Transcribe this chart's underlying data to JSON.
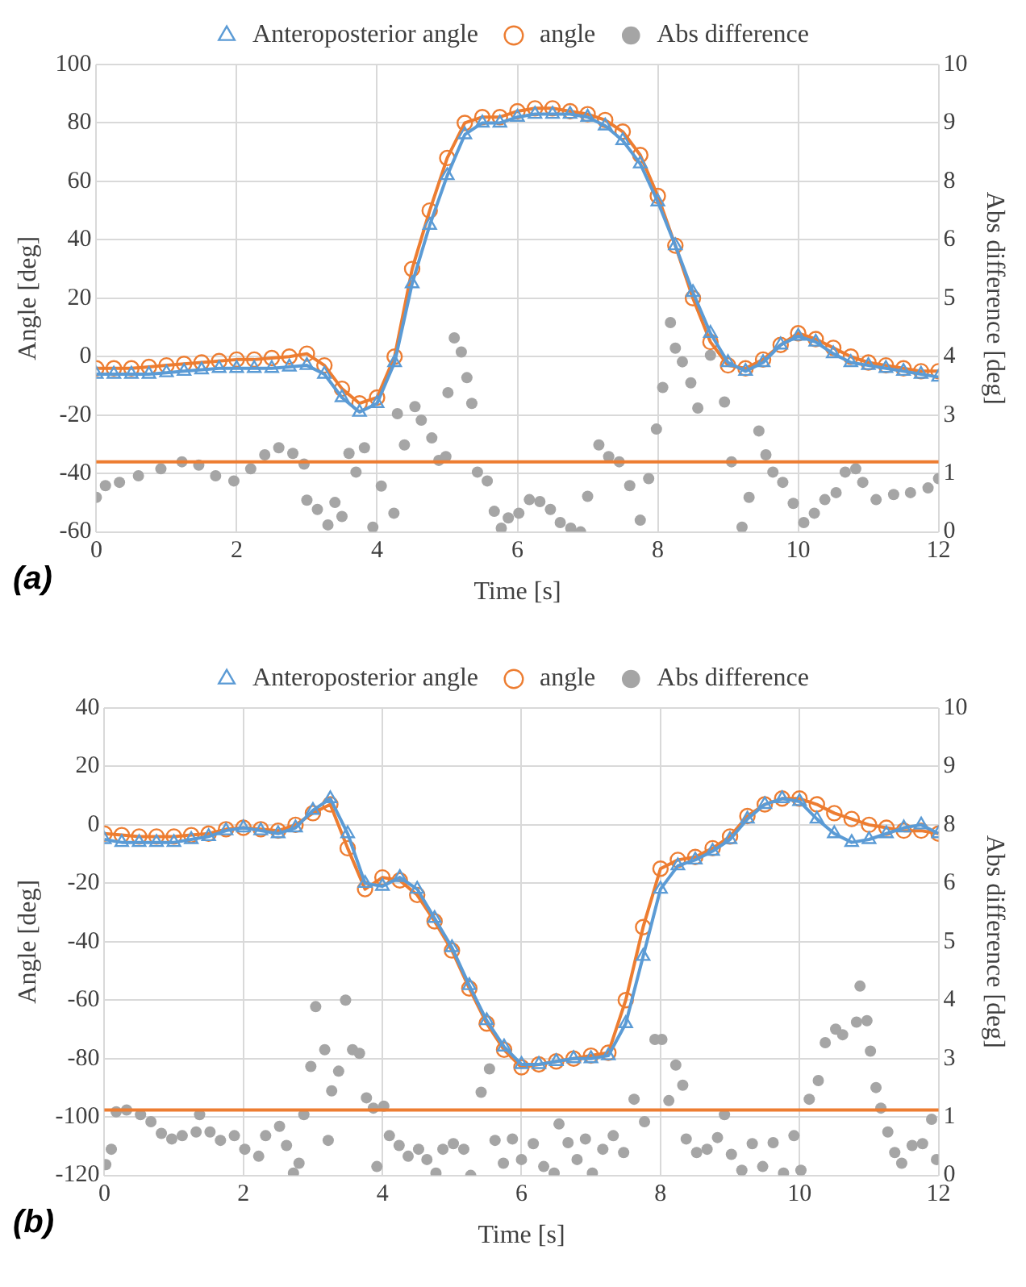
{
  "chart_data": [
    {
      "type": "line",
      "xlabel": "Time [s]",
      "ylabel": "Angle [deg]",
      "y2label": "Abs difference [deg]",
      "annotations": [
        "(a)"
      ],
      "x": [
        0,
        0.25,
        0.5,
        0.75,
        1,
        1.25,
        1.5,
        1.75,
        2,
        2.25,
        2.5,
        2.75,
        3,
        3.25,
        3.5,
        3.75,
        4,
        4.25,
        4.5,
        4.75,
        5,
        5.25,
        5.5,
        5.75,
        6,
        6.25,
        6.5,
        6.75,
        7,
        7.25,
        7.5,
        7.75,
        8,
        8.25,
        8.5,
        8.75,
        9,
        9.25,
        9.5,
        9.75,
        10,
        10.25,
        10.5,
        10.75,
        11,
        11.25,
        11.5,
        11.75,
        12
      ],
      "series": [
        {
          "name": "Anteroposterior angle",
          "color": "#5b9bd5",
          "marker": "triangle",
          "values": [
            -6,
            -6,
            -6,
            -6,
            -5.5,
            -5,
            -4.5,
            -4,
            -4,
            -4,
            -4,
            -3.5,
            -3,
            -6,
            -14,
            -19,
            -16,
            -2,
            25,
            45,
            62,
            76,
            80,
            80,
            82,
            83,
            83,
            83,
            82,
            79,
            74,
            66,
            53,
            38,
            22,
            8,
            -2,
            -5,
            -2,
            4,
            7,
            5,
            1,
            -2,
            -3,
            -4,
            -5,
            -6,
            -7
          ]
        },
        {
          "name": "angle",
          "color": "#ed7d31",
          "marker": "circle",
          "values": [
            -4,
            -4,
            -4,
            -3.5,
            -3,
            -2.5,
            -2,
            -1.5,
            -1,
            -1,
            -0.5,
            0,
            1,
            -3,
            -11,
            -16,
            -14,
            0,
            30,
            50,
            68,
            80,
            82,
            82,
            84,
            85,
            85,
            84,
            83,
            81,
            77,
            69,
            55,
            38,
            20,
            5,
            -3,
            -4,
            -1,
            4,
            8,
            6,
            3,
            0,
            -2,
            -3,
            -4,
            -5,
            -5
          ]
        },
        {
          "name": "Abs difference",
          "type": "scatter",
          "axis": "y2",
          "color": "#a5a5a5",
          "marker": "circle",
          "x": [
            0,
            0.13,
            0.33,
            0.6,
            0.92,
            1.22,
            1.46,
            1.7,
            1.96,
            2.2,
            2.4,
            2.6,
            2.8,
            2.96,
            3.0,
            3.15,
            3.3,
            3.4,
            3.5,
            3.6,
            3.7,
            3.82,
            3.94,
            4.06,
            4.24,
            4.29,
            4.39,
            4.54,
            4.63,
            4.78,
            4.88,
            4.98,
            5.01,
            5.1,
            5.2,
            5.28,
            5.35,
            5.43,
            5.57,
            5.67,
            5.77,
            5.87,
            6.02,
            6.17,
            6.32,
            6.47,
            6.61,
            6.76,
            6.9,
            7.0,
            7.16,
            7.3,
            7.45,
            7.6,
            7.75,
            7.87,
            7.98,
            8.07,
            8.18,
            8.25,
            8.35,
            8.47,
            8.57,
            8.75,
            8.95,
            9.05,
            9.2,
            9.3,
            9.44,
            9.54,
            9.64,
            9.78,
            9.93,
            10.08,
            10.23,
            10.38,
            10.54,
            10.67,
            10.82,
            10.92,
            11.11,
            11.36,
            11.6,
            11.85,
            12
          ],
          "values": [
            0.74,
            0.99,
            1.06,
            1.2,
            1.35,
            1.5,
            1.43,
            1.2,
            1.09,
            1.35,
            1.65,
            1.8,
            1.68,
            1.45,
            0.68,
            0.48,
            0.15,
            0.63,
            0.33,
            1.68,
            1.28,
            1.8,
            0.1,
            0.98,
            0.4,
            2.53,
            1.86,
            2.68,
            2.39,
            2.01,
            1.53,
            1.61,
            2.98,
            4.15,
            3.85,
            3.3,
            2.75,
            1.28,
            1.09,
            0.44,
            0.08,
            0.3,
            0.4,
            0.69,
            0.65,
            0.48,
            0.2,
            0.08,
            0,
            0.76,
            1.86,
            1.61,
            1.5,
            0.99,
            0.25,
            1.14,
            2.2,
            3.09,
            4.48,
            3.93,
            3.64,
            3.19,
            2.65,
            3.78,
            2.78,
            1.5,
            0.1,
            0.74,
            2.16,
            1.65,
            1.28,
            1.06,
            0.61,
            0.2,
            0.4,
            0.69,
            0.84,
            1.28,
            1.35,
            1.06,
            0.69,
            0.8,
            0.84,
            0.94,
            1.14
          ]
        }
      ],
      "xlim": [
        0,
        12
      ],
      "xticks": [
        0,
        2,
        4,
        6,
        8,
        10,
        12
      ],
      "ylim": [
        -60,
        100
      ],
      "yticks": [
        -60,
        -40,
        -20,
        0,
        20,
        40,
        60,
        80,
        100
      ],
      "y2lim": [
        0,
        10
      ],
      "y2ticks": [
        0,
        {
          "value": 1.25,
          "label": "1"
        },
        {
          "value": 2.5,
          "label": "3"
        },
        {
          "value": 3.75,
          "label": "4"
        },
        5,
        {
          "value": 6.25,
          "label": "6"
        },
        {
          "value": 7.5,
          "label": "8"
        },
        {
          "value": 8.75,
          "label": "9"
        },
        10
      ],
      "ref_lines": [
        {
          "axis": "y2",
          "value": 1.5,
          "color": "#ed7d31",
          "line_style": "solid"
        }
      ],
      "grid": true,
      "legend": "top"
    },
    {
      "type": "line",
      "xlabel": "Time [s]",
      "ylabel": "Angle [deg]",
      "y2label": "Abs difference [deg]",
      "annotations": [
        "(b)"
      ],
      "x": [
        0,
        0.25,
        0.5,
        0.75,
        1,
        1.25,
        1.5,
        1.75,
        2,
        2.25,
        2.5,
        2.75,
        3,
        3.25,
        3.5,
        3.75,
        4,
        4.25,
        4.5,
        4.75,
        5,
        5.25,
        5.5,
        5.75,
        6,
        6.25,
        6.5,
        6.75,
        7,
        7.25,
        7.5,
        7.75,
        8,
        8.25,
        8.5,
        8.75,
        9,
        9.25,
        9.5,
        9.75,
        10,
        10.25,
        10.5,
        10.75,
        11,
        11.25,
        11.5,
        11.75,
        12
      ],
      "series": [
        {
          "name": "Anteroposterior angle",
          "color": "#5b9bd5",
          "marker": "triangle",
          "values": [
            -5,
            -6,
            -6,
            -6,
            -6,
            -5,
            -4,
            -2,
            -1,
            -2,
            -3,
            -1,
            5,
            9,
            -3,
            -20,
            -21,
            -18,
            -22,
            -32,
            -42,
            -55,
            -67,
            -76,
            -82,
            -82,
            -81,
            -80,
            -80,
            -79,
            -68,
            -45,
            -22,
            -14,
            -12,
            -9,
            -5,
            2,
            7,
            9,
            8,
            2,
            -3,
            -6,
            -5,
            -3,
            -1,
            0,
            -3
          ]
        },
        {
          "name": "angle",
          "color": "#ed7d31",
          "marker": "circle",
          "values": [
            -3,
            -3.5,
            -4,
            -4,
            -4,
            -3.5,
            -3,
            -1.5,
            -1,
            -1.5,
            -2,
            0,
            4,
            7,
            -8,
            -22,
            -18,
            -19,
            -24,
            -33,
            -43,
            -56,
            -68,
            -77,
            -83,
            -82,
            -81,
            -80,
            -79,
            -78,
            -60,
            -35,
            -15,
            -12,
            -11,
            -8,
            -4,
            3,
            7,
            9,
            9,
            7,
            4,
            2,
            0,
            -1,
            -2,
            -2,
            -3
          ]
        },
        {
          "name": "Abs difference",
          "type": "scatter",
          "axis": "y2",
          "color": "#a5a5a5",
          "marker": "circle",
          "x": [
            0.02,
            0.1,
            0.17,
            0.32,
            0.52,
            0.67,
            0.82,
            0.97,
            1.12,
            1.32,
            1.37,
            1.52,
            1.67,
            1.87,
            2.02,
            2.22,
            2.32,
            2.52,
            2.62,
            2.72,
            2.8,
            2.87,
            2.97,
            3.04,
            3.17,
            3.22,
            3.27,
            3.37,
            3.47,
            3.57,
            3.67,
            3.77,
            3.87,
            3.92,
            4.02,
            4.1,
            4.24,
            4.37,
            4.52,
            4.64,
            4.77,
            4.87,
            5.02,
            5.17,
            5.27,
            5.42,
            5.54,
            5.62,
            5.74,
            5.87,
            6.0,
            6.17,
            6.32,
            6.47,
            6.54,
            6.67,
            6.8,
            6.92,
            7.02,
            7.17,
            7.32,
            7.47,
            7.62,
            7.77,
            7.92,
            8.02,
            8.12,
            8.22,
            8.32,
            8.37,
            8.52,
            8.67,
            8.82,
            8.92,
            9.02,
            9.17,
            9.32,
            9.47,
            9.62,
            9.77,
            9.92,
            10.02,
            10.14,
            10.27,
            10.37,
            10.52,
            10.62,
            10.82,
            10.87,
            10.97,
            11.02,
            11.1,
            11.17,
            11.27,
            11.37,
            11.47,
            11.62,
            11.77,
            11.9,
            11.97
          ],
          "values": [
            0.23,
            0.56,
            1.36,
            1.4,
            1.3,
            1.15,
            0.9,
            0.78,
            0.85,
            0.93,
            1.3,
            0.93,
            0.75,
            0.85,
            0.56,
            0.41,
            0.85,
            1.05,
            0.64,
            0.05,
            0.26,
            1.3,
            2.33,
            3.61,
            2.69,
            0.75,
            1.81,
            2.23,
            3.75,
            2.69,
            2.61,
            1.66,
            1.44,
            0.19,
            1.48,
            0.85,
            0.64,
            0.41,
            0.56,
            0.34,
            0.05,
            0.56,
            0.68,
            0.56,
            0,
            1.78,
            2.28,
            0.75,
            0.26,
            0.78,
            0.34,
            0.68,
            0.19,
            0.05,
            1.1,
            0.7,
            0.34,
            0.78,
            0.05,
            0.56,
            0.85,
            0.49,
            1.63,
            1.15,
            2.91,
            2.91,
            1.6,
            2.36,
            1.93,
            0.78,
            0.49,
            0.56,
            0.81,
            1.3,
            0.45,
            0.11,
            0.68,
            0.19,
            0.7,
            0.05,
            0.85,
            0.11,
            1.63,
            2.03,
            2.84,
            3.13,
            3.01,
            3.28,
            4.05,
            3.31,
            2.66,
            1.88,
            1.44,
            0.93,
            0.49,
            0.26,
            0.64,
            0.68,
            1.2,
            0.34
          ]
        }
      ],
      "xlim": [
        0,
        12
      ],
      "xticks": [
        0,
        2,
        4,
        6,
        8,
        10,
        12
      ],
      "ylim": [
        -120,
        40
      ],
      "yticks": [
        -120,
        -100,
        -80,
        -60,
        -40,
        -20,
        0,
        20,
        40
      ],
      "y2lim": [
        0,
        10
      ],
      "y2ticks": [
        0,
        {
          "value": 1.25,
          "label": "1"
        },
        {
          "value": 2.5,
          "label": "3"
        },
        {
          "value": 3.75,
          "label": "4"
        },
        5,
        {
          "value": 6.25,
          "label": "6"
        },
        {
          "value": 7.5,
          "label": "8"
        },
        {
          "value": 8.75,
          "label": "9"
        },
        10
      ],
      "ref_lines": [
        {
          "axis": "y2",
          "value": 1.4,
          "color": "#ed7d31",
          "line_style": "solid"
        }
      ],
      "grid": true,
      "legend": "top"
    }
  ]
}
